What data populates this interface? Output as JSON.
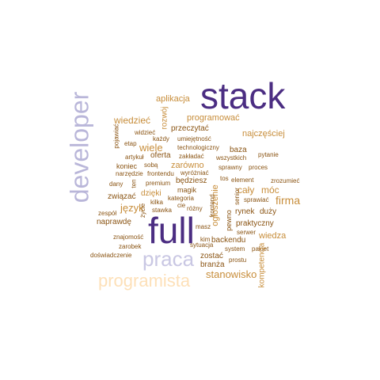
{
  "wordcloud": {
    "words": [
      {
        "text": "stack",
        "color": "#4b2d82"
      },
      {
        "text": "full",
        "color": "#4b2d82"
      },
      {
        "text": "developer",
        "color": "#b9b6d9"
      },
      {
        "text": "praca",
        "color": "#c9c7e3"
      },
      {
        "text": "programista",
        "color": "#fde0b8"
      },
      {
        "text": "firma",
        "color": "#c78d3a"
      },
      {
        "text": "stanowisko",
        "color": "#c78d3a"
      },
      {
        "text": "język",
        "color": "#c78d3a"
      },
      {
        "text": "wiele",
        "color": "#c78d3a"
      },
      {
        "text": "wiedzieć",
        "color": "#c78d3a"
      },
      {
        "text": "aplikacja",
        "color": "#c78d3a"
      },
      {
        "text": "programować",
        "color": "#c78d3a"
      },
      {
        "text": "najczęściej",
        "color": "#c78d3a"
      },
      {
        "text": "rozwój",
        "color": "#c78d3a"
      },
      {
        "text": "przeczytać",
        "color": "#8a5413"
      },
      {
        "text": "widzieć",
        "color": "#8a5413"
      },
      {
        "text": "pojawiać",
        "color": "#8a5413"
      },
      {
        "text": "etap",
        "color": "#8a5413"
      },
      {
        "text": "każdy",
        "color": "#8a5413"
      },
      {
        "text": "umiejętność",
        "color": "#8a5413"
      },
      {
        "text": "technologiczny",
        "color": "#8a5413"
      },
      {
        "text": "baza",
        "color": "#8a5413"
      },
      {
        "text": "pytanie",
        "color": "#8a5413"
      },
      {
        "text": "artykuł",
        "color": "#8a5413"
      },
      {
        "text": "oferta",
        "color": "#8a5413"
      },
      {
        "text": "zakładać",
        "color": "#8a5413"
      },
      {
        "text": "wszystkich",
        "color": "#8a5413"
      },
      {
        "text": "koniec",
        "color": "#8a5413"
      },
      {
        "text": "sobą",
        "color": "#8a5413"
      },
      {
        "text": "zarówno",
        "color": "#c78d3a"
      },
      {
        "text": "sprawny",
        "color": "#8a5413"
      },
      {
        "text": "proces",
        "color": "#8a5413"
      },
      {
        "text": "narzędzie",
        "color": "#8a5413"
      },
      {
        "text": "frontendu",
        "color": "#8a5413"
      },
      {
        "text": "wyróżniać",
        "color": "#8a5413"
      },
      {
        "text": "ten",
        "color": "#8a5413"
      },
      {
        "text": "premium",
        "color": "#8a5413"
      },
      {
        "text": "będziesz",
        "color": "#8a5413"
      },
      {
        "text": "tos",
        "color": "#8a5413"
      },
      {
        "text": "element",
        "color": "#8a5413"
      },
      {
        "text": "zrozumieć",
        "color": "#8a5413"
      },
      {
        "text": "dany",
        "color": "#8a5413"
      },
      {
        "text": "cały",
        "color": "#c78d3a"
      },
      {
        "text": "móc",
        "color": "#c78d3a"
      },
      {
        "text": "związać",
        "color": "#8a5413"
      },
      {
        "text": "dzięki",
        "color": "#c78d3a"
      },
      {
        "text": "magik",
        "color": "#8a5413"
      },
      {
        "text": "kategoria",
        "color": "#8a5413"
      },
      {
        "text": "ogłoszenie",
        "color": "#c78d3a"
      },
      {
        "text": "senior",
        "color": "#8a5413"
      },
      {
        "text": "sprawiać",
        "color": "#8a5413"
      },
      {
        "text": "kilka",
        "color": "#8a5413"
      },
      {
        "text": "cie",
        "color": "#8a5413"
      },
      {
        "text": "stawka",
        "color": "#8a5413"
      },
      {
        "text": "różny",
        "color": "#8a5413"
      },
      {
        "text": "frontend",
        "color": "#8a5413"
      },
      {
        "text": "zespół",
        "color": "#8a5413"
      },
      {
        "text": "życie",
        "color": "#8a5413"
      },
      {
        "text": "rynek",
        "color": "#8a5413"
      },
      {
        "text": "duży",
        "color": "#8a5413"
      },
      {
        "text": "naprawdę",
        "color": "#8a5413"
      },
      {
        "text": "pewno",
        "color": "#8a5413"
      },
      {
        "text": "praktyczny",
        "color": "#8a5413"
      },
      {
        "text": "masz",
        "color": "#8a5413"
      },
      {
        "text": "serwer",
        "color": "#8a5413"
      },
      {
        "text": "znajomość",
        "color": "#8a5413"
      },
      {
        "text": "backendu",
        "color": "#8a5413"
      },
      {
        "text": "wiedza",
        "color": "#c78d3a"
      },
      {
        "text": "kim",
        "color": "#8a5413"
      },
      {
        "text": "zarobek",
        "color": "#8a5413"
      },
      {
        "text": "sytuacja",
        "color": "#8a5413"
      },
      {
        "text": "system",
        "color": "#8a5413"
      },
      {
        "text": "pakiet",
        "color": "#8a5413"
      },
      {
        "text": "doświadczenie",
        "color": "#8a5413"
      },
      {
        "text": "zostać",
        "color": "#8a5413"
      },
      {
        "text": "prostu",
        "color": "#8a5413"
      },
      {
        "text": "kompetencja",
        "color": "#c78d3a"
      },
      {
        "text": "branża",
        "color": "#8a5413"
      }
    ]
  }
}
